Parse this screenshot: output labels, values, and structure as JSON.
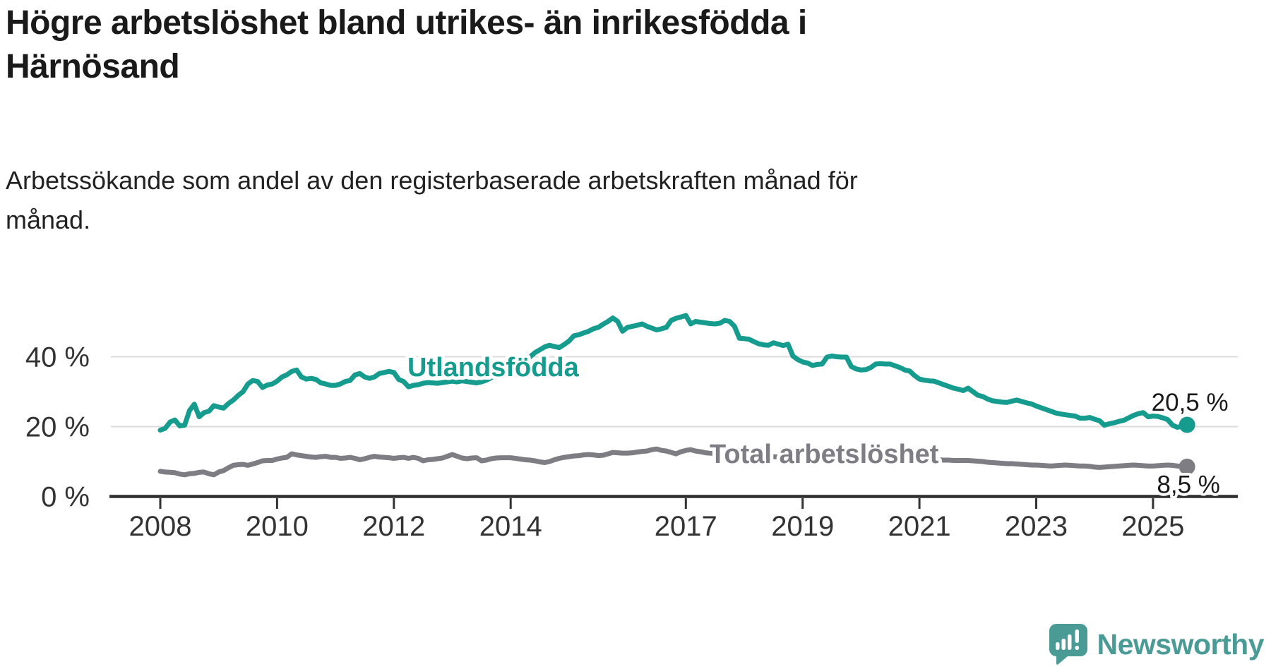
{
  "header": {
    "title": "Högre arbetslöshet bland utrikes- än inrikesfödda i\nHärnösand",
    "subtitle": "Arbetssökande som andel av den registerbaserade arbetskraften månad för\nmånad."
  },
  "footer": {
    "brand": "Newsworthy"
  },
  "colors": {
    "accent_teal": "#169c8e",
    "series_gray": "#7e7d84",
    "axis": "#2f2f2f",
    "grid": "#dbdbdb",
    "text_dark": "#1a1a1a",
    "tick_text": "#333333",
    "logo_teal": "#4a9a96",
    "background": "#ffffff"
  },
  "chart_data": {
    "type": "line",
    "title": "Högre arbetslöshet bland utrikes- än inrikesfödda i Härnösand",
    "subtitle": "Arbetssökande som andel av den registerbaserade arbetskraften månad för månad.",
    "unit": "%",
    "frequency": "monthly",
    "x_start_year": 2008,
    "x_end": "2025-08",
    "ylim": [
      0,
      57
    ],
    "grid": "horizontal",
    "legend_position": "inline-labels",
    "axis_color": "#2f2f2f",
    "grid_color": "#dbdbdb",
    "yticks": [
      {
        "value": 0,
        "label": "0 %"
      },
      {
        "value": 20,
        "label": "20 %"
      },
      {
        "value": 40,
        "label": "40 %"
      }
    ],
    "xticks": [
      {
        "value": 2008,
        "label": "2008"
      },
      {
        "value": 2010,
        "label": "2010"
      },
      {
        "value": 2012,
        "label": "2012"
      },
      {
        "value": 2014,
        "label": "2014"
      },
      {
        "value": 2017,
        "label": "2017"
      },
      {
        "value": 2019,
        "label": "2019"
      },
      {
        "value": 2021,
        "label": "2021"
      },
      {
        "value": 2023,
        "label": "2023"
      },
      {
        "value": 2025,
        "label": "2025"
      }
    ],
    "series": [
      {
        "name": "Utlandsfödda",
        "color": "#169c8e",
        "end_label": "20,5 %",
        "end_value": 20.5,
        "values": [
          19.0,
          19.5,
          21.3,
          21.9,
          20.2,
          20.4,
          24.6,
          26.4,
          22.8,
          24.0,
          24.4,
          26.0,
          25.6,
          25.3,
          26.6,
          27.6,
          28.9,
          30.0,
          32.2,
          33.2,
          32.9,
          31.2,
          31.9,
          32.2,
          33.0,
          34.2,
          34.8,
          35.8,
          36.2,
          34.2,
          33.6,
          33.8,
          33.5,
          32.5,
          32.2,
          31.8,
          31.8,
          32.2,
          32.9,
          33.2,
          34.8,
          35.2,
          34.2,
          33.8,
          34.2,
          35.2,
          35.5,
          35.8,
          35.5,
          33.5,
          32.9,
          31.4,
          31.8,
          32.0,
          32.4,
          32.6,
          32.5,
          32.4,
          32.6,
          32.8,
          33.0,
          32.8,
          33.1,
          32.9,
          32.7,
          32.5,
          32.8,
          33.3,
          34.0,
          34.8,
          35.3,
          35.7,
          36.4,
          37.1,
          38.0,
          38.8,
          40.0,
          41.2,
          42.0,
          42.8,
          43.3,
          42.9,
          42.6,
          43.5,
          44.5,
          46.0,
          46.3,
          46.8,
          47.3,
          48.0,
          48.4,
          49.3,
          50.1,
          51.1,
          50.1,
          47.3,
          48.4,
          48.7,
          49.0,
          49.4,
          48.7,
          48.2,
          47.7,
          48.0,
          48.4,
          50.4,
          51.0,
          51.4,
          51.8,
          49.4,
          50.1,
          49.9,
          49.7,
          49.5,
          49.4,
          49.6,
          50.4,
          50.1,
          48.7,
          45.3,
          45.2,
          45.0,
          44.3,
          43.7,
          43.4,
          43.3,
          44.0,
          43.6,
          43.2,
          43.6,
          40.2,
          39.2,
          38.5,
          38.2,
          37.5,
          37.8,
          37.9,
          39.9,
          40.2,
          40.0,
          39.9,
          39.9,
          37.2,
          36.5,
          36.2,
          36.3,
          36.9,
          37.9,
          38.0,
          37.9,
          37.9,
          37.4,
          36.9,
          36.2,
          35.9,
          34.6,
          33.6,
          33.3,
          33.1,
          33.0,
          32.5,
          32.0,
          31.5,
          31.0,
          30.7,
          30.3,
          31.0,
          30.0,
          29.0,
          28.6,
          27.9,
          27.4,
          27.2,
          27.0,
          26.9,
          27.3,
          27.6,
          27.2,
          26.8,
          26.5,
          25.9,
          25.4,
          24.9,
          24.4,
          23.9,
          23.6,
          23.4,
          23.2,
          23.0,
          22.4,
          22.4,
          22.6,
          22.1,
          21.7,
          20.4,
          20.8,
          21.1,
          21.5,
          21.8,
          22.5,
          23.2,
          23.7,
          24.0,
          22.8,
          23.0,
          22.9,
          22.5,
          22.0,
          20.4,
          19.8,
          20.1,
          20.5
        ]
      },
      {
        "name": "Total arbetslöshet",
        "color": "#7e7d84",
        "end_label": "8,5 %",
        "end_value": 8.5,
        "values": [
          7.2,
          7.0,
          6.9,
          6.8,
          6.4,
          6.2,
          6.5,
          6.6,
          6.9,
          7.0,
          6.5,
          6.2,
          7.0,
          7.4,
          8.2,
          8.9,
          9.1,
          9.2,
          8.9,
          9.3,
          9.7,
          10.2,
          10.3,
          10.3,
          10.7,
          11.0,
          11.2,
          12.2,
          11.9,
          11.7,
          11.5,
          11.3,
          11.2,
          11.4,
          11.5,
          11.2,
          11.2,
          10.9,
          11.0,
          11.2,
          10.9,
          10.5,
          10.8,
          11.2,
          11.5,
          11.3,
          11.2,
          11.1,
          10.9,
          11.1,
          11.2,
          10.9,
          11.2,
          10.9,
          10.2,
          10.5,
          10.6,
          10.8,
          11.0,
          11.5,
          12.0,
          11.5,
          11.0,
          10.8,
          11.0,
          11.1,
          10.2,
          10.4,
          10.8,
          11.0,
          11.1,
          11.1,
          11.1,
          10.9,
          10.7,
          10.5,
          10.4,
          10.2,
          9.9,
          9.7,
          10.0,
          10.5,
          10.9,
          11.2,
          11.4,
          11.6,
          11.7,
          11.9,
          12.0,
          11.9,
          11.7,
          11.8,
          12.2,
          12.6,
          12.5,
          12.4,
          12.4,
          12.5,
          12.7,
          12.9,
          13.0,
          13.4,
          13.6,
          13.2,
          13.0,
          12.6,
          12.2,
          12.8,
          13.2,
          13.4,
          13.0,
          12.8,
          12.5,
          12.4,
          12.3,
          12.2,
          12.2,
          12.1,
          12.0,
          12.0,
          11.9,
          11.8,
          11.7,
          11.6,
          11.5,
          11.5,
          11.4,
          11.3,
          11.2,
          11.1,
          11.0,
          11.0,
          10.9,
          10.9,
          10.8,
          10.8,
          10.7,
          10.7,
          10.8,
          10.8,
          10.9,
          10.9,
          10.8,
          10.8,
          10.9,
          11.0,
          11.2,
          11.4,
          11.5,
          11.5,
          11.4,
          11.3,
          11.2,
          11.1,
          11.0,
          10.9,
          10.8,
          10.7,
          10.6,
          10.5,
          10.5,
          10.4,
          10.4,
          10.3,
          10.3,
          10.3,
          10.3,
          10.2,
          10.1,
          10.0,
          9.8,
          9.7,
          9.6,
          9.5,
          9.4,
          9.4,
          9.3,
          9.2,
          9.1,
          9.0,
          9.0,
          8.9,
          8.8,
          8.7,
          8.8,
          8.9,
          9.0,
          8.9,
          8.8,
          8.7,
          8.7,
          8.6,
          8.4,
          8.3,
          8.4,
          8.5,
          8.6,
          8.7,
          8.8,
          8.9,
          9.0,
          8.9,
          8.8,
          8.7,
          8.7,
          8.8,
          8.9,
          9.0,
          8.9,
          8.7,
          8.6,
          8.5
        ]
      }
    ]
  }
}
